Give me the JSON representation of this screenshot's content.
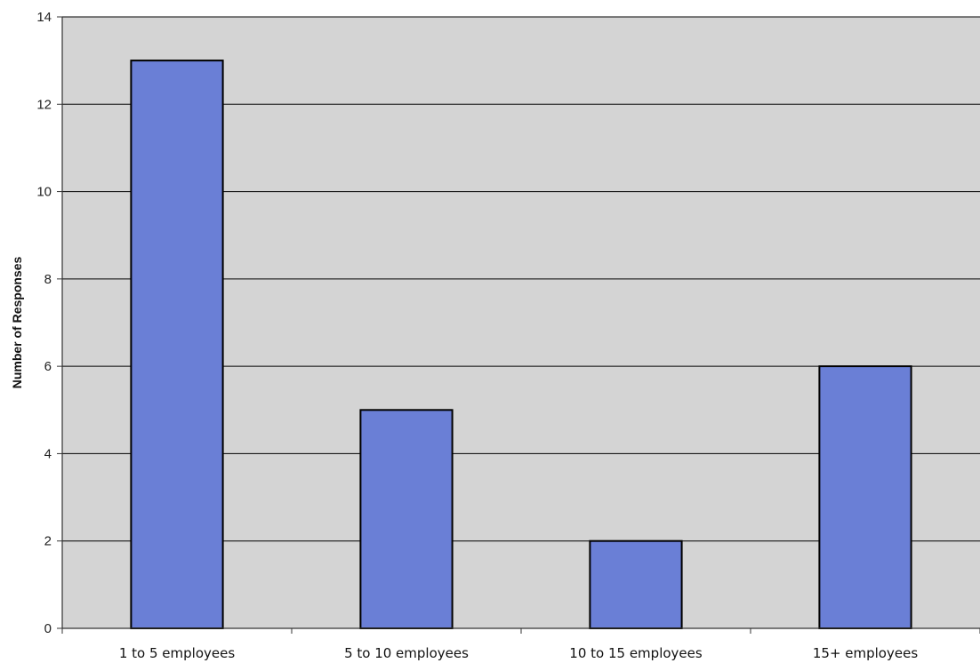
{
  "chart_data": {
    "type": "bar",
    "title": "",
    "xlabel": "",
    "ylabel": "Number of Responses",
    "categories": [
      "1 to 5 employees",
      "5 to 10 employees",
      "10 to 15 employees",
      "15+ employees"
    ],
    "values": [
      13,
      5,
      2,
      6
    ],
    "ylim": [
      0,
      14
    ],
    "yticks": [
      0,
      2,
      4,
      6,
      8,
      10,
      12,
      14
    ],
    "grid": true,
    "legend": "none",
    "colors": {
      "bar_fill": "#6a7fd6",
      "bar_stroke": "#000000",
      "plot_background": "#d4d4d4",
      "gridline": "#000000"
    }
  }
}
